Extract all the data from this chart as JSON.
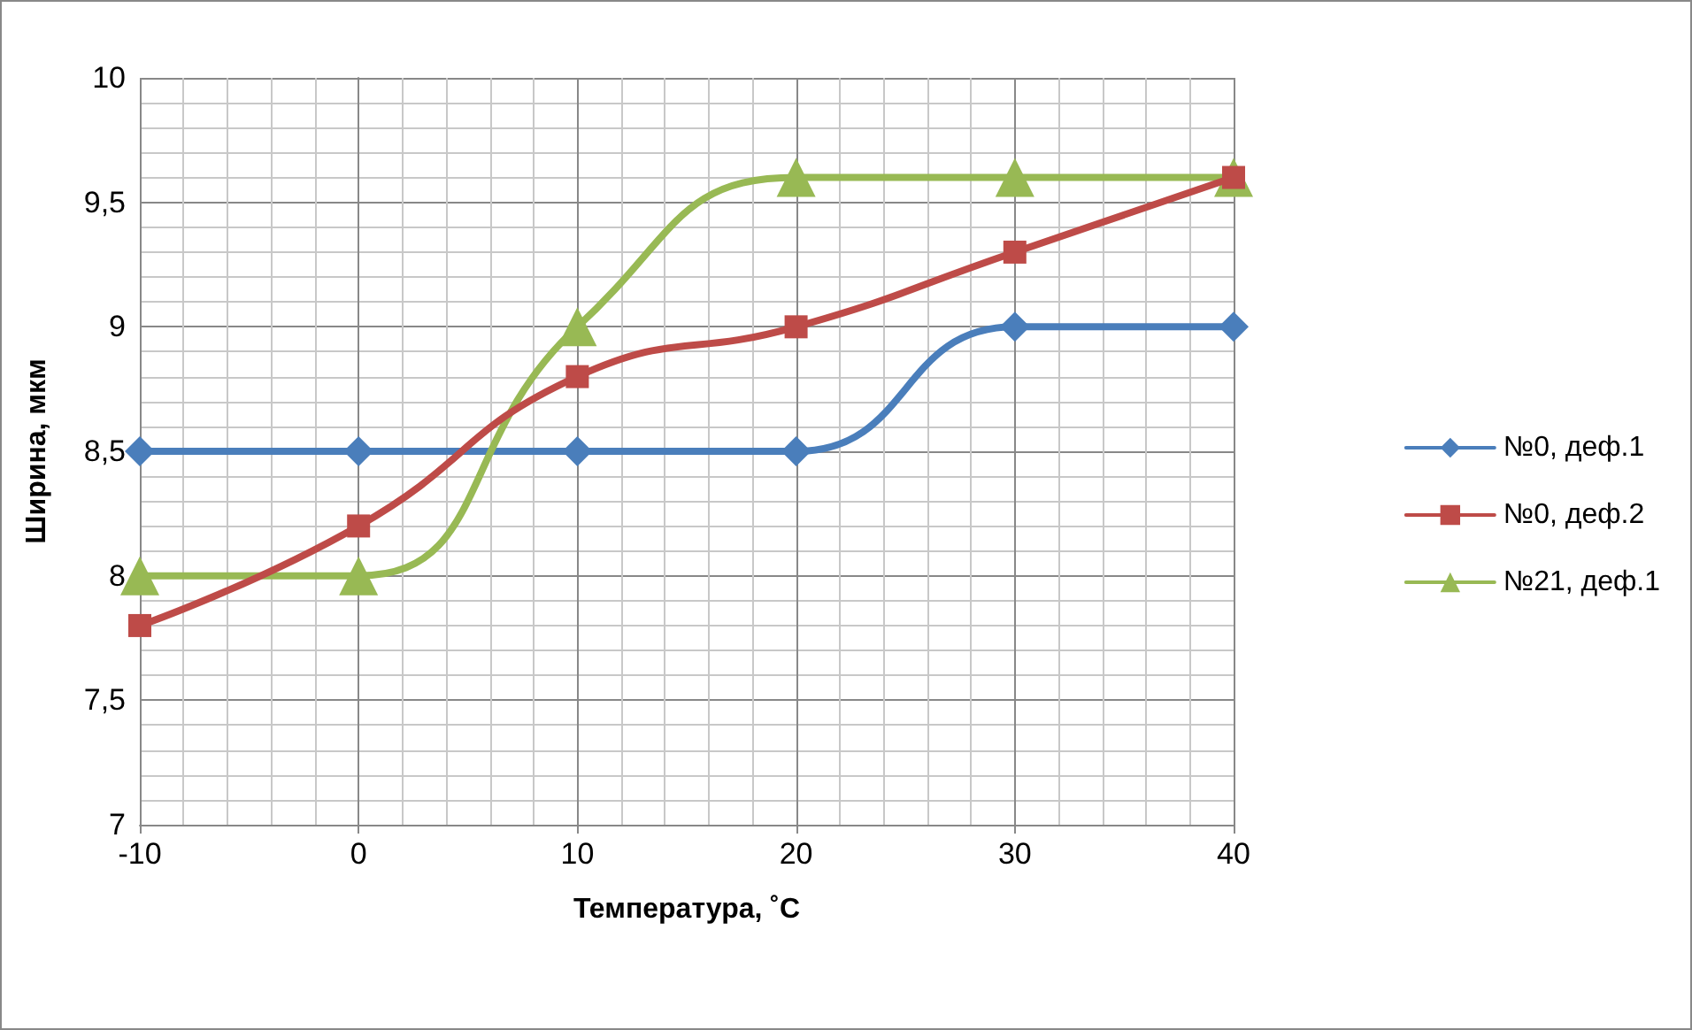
{
  "chart_data": {
    "type": "line",
    "xlabel": "Температура, ˚C",
    "ylabel": "Ширина, мкм",
    "x": [
      -10,
      0,
      10,
      20,
      30,
      40
    ],
    "xlim": [
      -10,
      40
    ],
    "xticks": [
      -10,
      0,
      10,
      20,
      30,
      40
    ],
    "ylim": [
      7,
      10
    ],
    "yticks": [
      7,
      {
        "value": 7.5,
        "label": "7,5"
      },
      8,
      {
        "value": 8.5,
        "label": "8,5"
      },
      9,
      {
        "value": 9.5,
        "label": "9,5"
      },
      10
    ],
    "grid": true,
    "legend": "right",
    "line_style": "solid",
    "series": [
      {
        "name": "№0, деф.1",
        "color": "#4a7ebb",
        "marker": "diamond",
        "values": [
          8.5,
          8.5,
          8.5,
          8.5,
          9,
          9
        ]
      },
      {
        "name": "№0, деф.2",
        "color": "#be4b48",
        "marker": "square",
        "values": [
          7.8,
          8.2,
          8.8,
          9,
          9.3,
          9.6
        ]
      },
      {
        "name": "№21, деф.1",
        "color": "#98b954",
        "marker": "triangle",
        "values": [
          8,
          8,
          9,
          9.6,
          9.6,
          9.6
        ]
      }
    ]
  }
}
